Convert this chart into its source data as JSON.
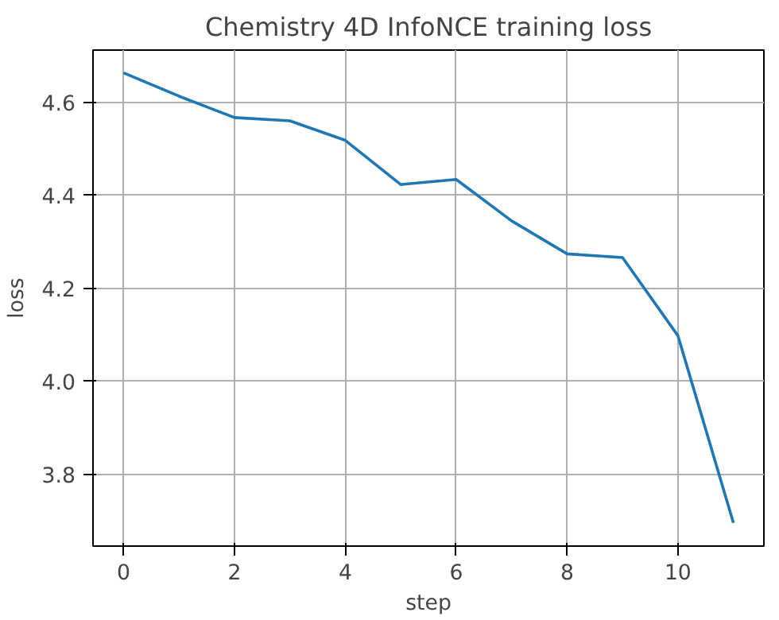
{
  "chart_data": {
    "type": "line",
    "title": "Chemistry 4D InfoNCE training loss",
    "xlabel": "step",
    "ylabel": "loss",
    "x": [
      0,
      1,
      2,
      3,
      4,
      5,
      6,
      7,
      8,
      9,
      10,
      11
    ],
    "series": [
      {
        "color": "#1f77b4",
        "values": [
          4.663,
          4.613,
          4.567,
          4.56,
          4.518,
          4.423,
          4.434,
          4.345,
          4.274,
          4.266,
          4.098,
          3.696
        ]
      }
    ],
    "xlim": [
      -0.55,
      11.55
    ],
    "ylim": [
      3.646,
      4.712
    ],
    "xticks": [
      0,
      2,
      4,
      6,
      8,
      10
    ],
    "yticks": [
      3.8,
      {
        "value": 4,
        "label": "4.0"
      },
      4.2,
      4.4,
      4.6
    ],
    "grid": true,
    "marker": "none",
    "line_style": "solid"
  }
}
